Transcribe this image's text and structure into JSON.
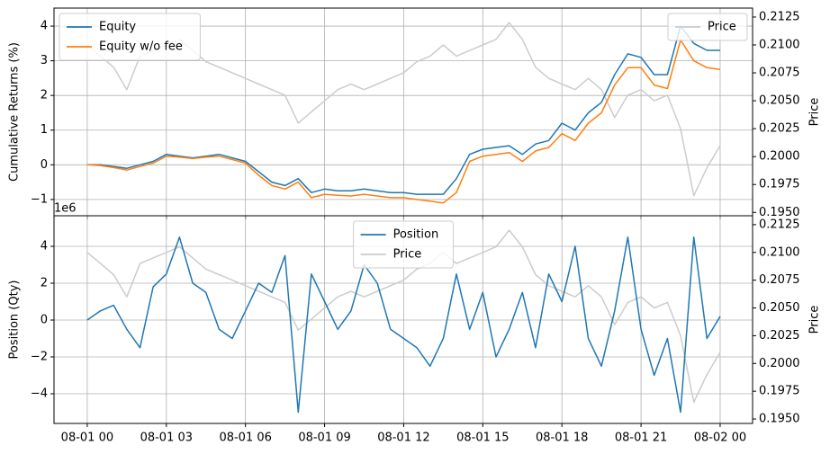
{
  "chart_data": [
    {
      "type": "line",
      "ylabel": "Cumulative Returns (%)",
      "y2label": "Price",
      "x": [
        0,
        0.5,
        1,
        1.5,
        2,
        2.5,
        3,
        3.5,
        4,
        4.5,
        5,
        5.5,
        6,
        6.5,
        7,
        7.5,
        8,
        8.5,
        9,
        9.5,
        10,
        10.5,
        11,
        11.5,
        12,
        12.5,
        13,
        13.5,
        14,
        14.5,
        15,
        15.5,
        16,
        16.5,
        17,
        17.5,
        18,
        18.5,
        19,
        19.5,
        20,
        20.5,
        21,
        21.5,
        22,
        22.5,
        23,
        23.5,
        24
      ],
      "series": [
        {
          "name": "Equity",
          "color": "#1f77b4",
          "axis": "y",
          "values": [
            0,
            0,
            -0.05,
            -0.1,
            0,
            0.1,
            0.3,
            0.25,
            0.2,
            0.25,
            0.3,
            0.2,
            0.1,
            -0.2,
            -0.5,
            -0.6,
            -0.4,
            -0.8,
            -0.7,
            -0.75,
            -0.75,
            -0.7,
            -0.75,
            -0.8,
            -0.8,
            -0.85,
            -0.85,
            -0.85,
            -0.4,
            0.3,
            0.45,
            0.5,
            0.55,
            0.3,
            0.6,
            0.7,
            1.2,
            1.0,
            1.5,
            1.8,
            2.6,
            3.2,
            3.1,
            2.6,
            2.6,
            4.0,
            3.5,
            3.3,
            3.3
          ]
        },
        {
          "name": "Equity w/o fee",
          "color": "#ff7f0e",
          "axis": "y",
          "values": [
            0,
            -0.02,
            -0.08,
            -0.15,
            -0.05,
            0.05,
            0.25,
            0.22,
            0.18,
            0.22,
            0.25,
            0.15,
            0.05,
            -0.3,
            -0.6,
            -0.7,
            -0.5,
            -0.95,
            -0.85,
            -0.88,
            -0.9,
            -0.85,
            -0.9,
            -0.95,
            -0.95,
            -1.0,
            -1.05,
            -1.1,
            -0.8,
            0.1,
            0.25,
            0.3,
            0.35,
            0.1,
            0.4,
            0.5,
            0.9,
            0.7,
            1.2,
            1.5,
            2.3,
            2.8,
            2.8,
            2.3,
            2.2,
            3.6,
            3.0,
            2.8,
            2.75
          ]
        },
        {
          "name": "Price",
          "color": "#cccccc",
          "axis": "y2",
          "values": [
            0.21,
            0.209,
            0.208,
            0.206,
            0.209,
            0.2095,
            0.21,
            0.2105,
            0.2095,
            0.2085,
            0.208,
            0.2075,
            0.207,
            0.2065,
            0.206,
            0.2055,
            0.203,
            0.204,
            0.205,
            0.206,
            0.2065,
            0.206,
            0.2065,
            0.207,
            0.2075,
            0.2085,
            0.209,
            0.21,
            0.209,
            0.2095,
            0.21,
            0.2105,
            0.212,
            0.2105,
            0.208,
            0.207,
            0.2065,
            0.206,
            0.207,
            0.206,
            0.2035,
            0.2055,
            0.206,
            0.205,
            0.2055,
            0.2025,
            0.1965,
            0.199,
            0.201
          ]
        }
      ],
      "xlim": [
        -1.26,
        25.23
      ],
      "ylim": [
        -1.47,
        4.52
      ],
      "yticks": [
        {
          "value": -1,
          "label": "−1"
        },
        0,
        1,
        2,
        3,
        4
      ],
      "y2lim": [
        0.1947,
        0.2133
      ],
      "y2ticks": [
        {
          "value": 0.195,
          "label": "0.1950"
        },
        {
          "value": 0.1975,
          "label": "0.1975"
        },
        {
          "value": 0.2,
          "label": "0.2000"
        },
        {
          "value": 0.2025,
          "label": "0.2025"
        },
        {
          "value": 0.205,
          "label": "0.2050"
        },
        {
          "value": 0.2075,
          "label": "0.2075"
        },
        {
          "value": 0.21,
          "label": "0.2100"
        },
        {
          "value": 0.2125,
          "label": "0.2125"
        }
      ],
      "grid": true,
      "legend": "upper left",
      "legend2": "upper right"
    },
    {
      "type": "line",
      "ylabel": "Position (Qty)",
      "y2label": "Price",
      "y_offset_label": "1e6",
      "x": [
        0,
        0.5,
        1,
        1.5,
        2,
        2.5,
        3,
        3.5,
        4,
        4.5,
        5,
        5.5,
        6,
        6.5,
        7,
        7.5,
        8,
        8.5,
        9,
        9.5,
        10,
        10.5,
        11,
        11.5,
        12,
        12.5,
        13,
        13.5,
        14,
        14.5,
        15,
        15.5,
        16,
        16.5,
        17,
        17.5,
        18,
        18.5,
        19,
        19.5,
        20,
        20.5,
        21,
        21.5,
        22,
        22.5,
        23,
        23.5,
        24
      ],
      "series": [
        {
          "name": "Position",
          "color": "#1f77b4",
          "axis": "y",
          "values": [
            0,
            0.5,
            0.8,
            -0.5,
            -1.5,
            1.8,
            2.5,
            4.5,
            2.0,
            1.5,
            -0.5,
            -1.0,
            0.5,
            2.0,
            1.5,
            3.5,
            -5.0,
            2.5,
            1.0,
            -0.5,
            0.5,
            3.0,
            2.0,
            -0.5,
            -1.0,
            -1.5,
            -2.5,
            -1.0,
            2.5,
            -0.5,
            1.5,
            -2.0,
            -0.5,
            1.5,
            -1.5,
            2.5,
            1.0,
            4.0,
            -1.0,
            -2.5,
            0.5,
            4.5,
            -0.5,
            -3.0,
            -1.0,
            -5.0,
            4.5,
            -1.0,
            0.2
          ]
        },
        {
          "name": "Price",
          "color": "#cccccc",
          "axis": "y2",
          "values": [
            0.21,
            0.209,
            0.208,
            0.206,
            0.209,
            0.2095,
            0.21,
            0.2105,
            0.2095,
            0.2085,
            0.208,
            0.2075,
            0.207,
            0.2065,
            0.206,
            0.2055,
            0.203,
            0.204,
            0.205,
            0.206,
            0.2065,
            0.206,
            0.2065,
            0.207,
            0.2075,
            0.2085,
            0.209,
            0.21,
            0.209,
            0.2095,
            0.21,
            0.2105,
            0.212,
            0.2105,
            0.208,
            0.207,
            0.2065,
            0.206,
            0.207,
            0.206,
            0.2035,
            0.2055,
            0.206,
            0.205,
            0.2055,
            0.2025,
            0.1965,
            0.199,
            0.201
          ]
        }
      ],
      "xlim": [
        -1.26,
        25.23
      ],
      "ylim": [
        -5.61,
        5.66
      ],
      "xticks": [
        {
          "value": 0,
          "label": "08-01 00"
        },
        {
          "value": 3,
          "label": "08-01 03"
        },
        {
          "value": 6,
          "label": "08-01 06"
        },
        {
          "value": 9,
          "label": "08-01 09"
        },
        {
          "value": 12,
          "label": "08-01 12"
        },
        {
          "value": 15,
          "label": "08-01 15"
        },
        {
          "value": 18,
          "label": "08-01 18"
        },
        {
          "value": 21,
          "label": "08-01 21"
        },
        {
          "value": 24,
          "label": "08-02 00"
        }
      ],
      "yticks": [
        {
          "value": -4,
          "label": "−4"
        },
        {
          "value": -2,
          "label": "−2"
        },
        0,
        2,
        4
      ],
      "y2lim": [
        0.1946,
        0.2133
      ],
      "y2ticks": [
        {
          "value": 0.195,
          "label": "0.1950"
        },
        {
          "value": 0.1975,
          "label": "0.1975"
        },
        {
          "value": 0.2,
          "label": "0.2000"
        },
        {
          "value": 0.2025,
          "label": "0.2025"
        },
        {
          "value": 0.205,
          "label": "0.2050"
        },
        {
          "value": 0.2075,
          "label": "0.2075"
        },
        {
          "value": 0.21,
          "label": "0.2100"
        },
        {
          "value": 0.2125,
          "label": "0.2125"
        }
      ],
      "grid": true,
      "legend": "upper center"
    }
  ]
}
